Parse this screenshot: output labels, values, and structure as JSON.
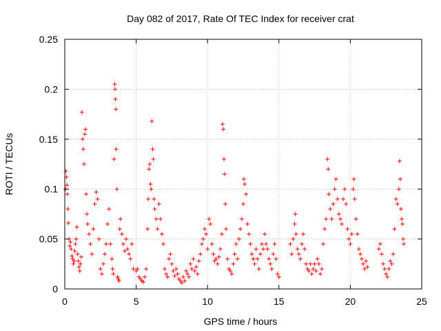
{
  "chart_data": {
    "type": "scatter",
    "title": "Day 082 of 2017, Rate Of TEC Index for receiver crat",
    "xlabel": "GPS time / hours",
    "ylabel": "ROTI / TECUs",
    "xlim": [
      0,
      25
    ],
    "ylim": [
      0,
      0.25
    ],
    "xticks": [
      0,
      5,
      10,
      15,
      20,
      25
    ],
    "yticks": [
      0,
      0.05,
      0.1,
      0.15,
      0.2,
      0.25
    ],
    "xtick_labels": [
      "0",
      "5",
      "10",
      "15",
      "20",
      "25"
    ],
    "ytick_labels": [
      "0",
      "0.05",
      "0.1",
      "0.15",
      "0.2",
      "0.25"
    ],
    "grid": true,
    "marker": "+",
    "color": "#ff0000",
    "series": [
      {
        "points": [
          [
            0.05,
            0.1
          ],
          [
            0.08,
            0.118
          ],
          [
            0.12,
            0.112
          ],
          [
            0.15,
            0.104
          ],
          [
            0.18,
            0.095
          ],
          [
            0.22,
            0.08
          ],
          [
            0.25,
            0.066
          ],
          [
            0.3,
            0.05
          ],
          [
            0.35,
            0.043
          ],
          [
            0.4,
            0.047
          ],
          [
            0.45,
            0.04
          ],
          [
            0.5,
            0.033
          ],
          [
            0.55,
            0.03
          ],
          [
            0.6,
            0.025
          ],
          [
            0.65,
            0.028
          ],
          [
            0.7,
            0.038
          ],
          [
            0.75,
            0.045
          ],
          [
            0.8,
            0.05
          ],
          [
            0.85,
            0.062
          ],
          [
            0.9,
            0.035
          ],
          [
            0.95,
            0.028
          ],
          [
            1.0,
            0.022
          ],
          [
            1.05,
            0.018
          ],
          [
            1.1,
            0.025
          ],
          [
            1.15,
            0.032
          ],
          [
            1.2,
            0.177
          ],
          [
            1.25,
            0.15
          ],
          [
            1.3,
            0.14
          ],
          [
            1.35,
            0.125
          ],
          [
            1.4,
            0.155
          ],
          [
            1.45,
            0.16
          ],
          [
            1.5,
            0.095
          ],
          [
            1.55,
            0.075
          ],
          [
            1.6,
            0.065
          ],
          [
            1.7,
            0.055
          ],
          [
            1.8,
            0.045
          ],
          [
            1.9,
            0.035
          ],
          [
            2.0,
            0.06
          ],
          [
            2.1,
            0.085
          ],
          [
            2.2,
            0.097
          ],
          [
            2.3,
            0.09
          ],
          [
            2.4,
            0.05
          ],
          [
            2.5,
            0.02
          ],
          [
            2.6,
            0.015
          ],
          [
            2.7,
            0.025
          ],
          [
            2.8,
            0.035
          ],
          [
            2.9,
            0.045
          ],
          [
            3.0,
            0.065
          ],
          [
            3.1,
            0.08
          ],
          [
            3.2,
            0.045
          ],
          [
            3.3,
            0.03
          ],
          [
            3.35,
            0.02
          ],
          [
            3.4,
            0.015
          ],
          [
            3.45,
            0.13
          ],
          [
            3.5,
            0.205
          ],
          [
            3.52,
            0.2
          ],
          [
            3.55,
            0.19
          ],
          [
            3.58,
            0.18
          ],
          [
            3.6,
            0.14
          ],
          [
            3.65,
            0.1
          ],
          [
            3.7,
            0.012
          ],
          [
            3.75,
            0.01
          ],
          [
            3.8,
            0.008
          ],
          [
            3.85,
            0.06
          ],
          [
            3.9,
            0.07
          ],
          [
            4.0,
            0.055
          ],
          [
            4.1,
            0.045
          ],
          [
            4.2,
            0.038
          ],
          [
            4.3,
            0.05
          ],
          [
            4.4,
            0.04
          ],
          [
            4.5,
            0.035
          ],
          [
            4.6,
            0.03
          ],
          [
            4.7,
            0.045
          ],
          [
            4.8,
            0.02
          ],
          [
            5.0,
            0.018
          ],
          [
            5.1,
            0.02
          ],
          [
            5.2,
            0.012
          ],
          [
            5.3,
            0.01
          ],
          [
            5.4,
            0.008
          ],
          [
            5.5,
            0.007
          ],
          [
            5.6,
            0.012
          ],
          [
            5.7,
            0.02
          ],
          [
            5.8,
            0.06
          ],
          [
            5.85,
            0.09
          ],
          [
            5.9,
            0.12
          ],
          [
            5.95,
            0.125
          ],
          [
            6.0,
            0.105
          ],
          [
            6.05,
            0.1
          ],
          [
            6.1,
            0.168
          ],
          [
            6.15,
            0.14
          ],
          [
            6.2,
            0.13
          ],
          [
            6.25,
            0.09
          ],
          [
            6.3,
            0.08
          ],
          [
            6.4,
            0.07
          ],
          [
            6.5,
            0.06
          ],
          [
            6.6,
            0.085
          ],
          [
            6.7,
            0.07
          ],
          [
            6.8,
            0.055
          ],
          [
            6.9,
            0.045
          ],
          [
            7.0,
            0.02
          ],
          [
            7.1,
            0.015
          ],
          [
            7.2,
            0.012
          ],
          [
            7.3,
            0.03
          ],
          [
            7.4,
            0.035
          ],
          [
            7.5,
            0.025
          ],
          [
            7.6,
            0.018
          ],
          [
            7.7,
            0.013
          ],
          [
            7.8,
            0.02
          ],
          [
            7.9,
            0.015
          ],
          [
            8.0,
            0.01
          ],
          [
            8.1,
            0.008
          ],
          [
            8.2,
            0.006
          ],
          [
            8.3,
            0.012
          ],
          [
            8.4,
            0.008
          ],
          [
            8.5,
            0.018
          ],
          [
            8.6,
            0.015
          ],
          [
            8.7,
            0.012
          ],
          [
            8.8,
            0.025
          ],
          [
            8.9,
            0.02
          ],
          [
            9.0,
            0.03
          ],
          [
            9.1,
            0.018
          ],
          [
            9.2,
            0.022
          ],
          [
            9.3,
            0.015
          ],
          [
            9.4,
            0.028
          ],
          [
            9.5,
            0.035
          ],
          [
            9.6,
            0.045
          ],
          [
            9.7,
            0.05
          ],
          [
            9.8,
            0.06
          ],
          [
            9.9,
            0.055
          ],
          [
            10.0,
            0.04
          ],
          [
            10.1,
            0.07
          ],
          [
            10.2,
            0.065
          ],
          [
            10.3,
            0.045
          ],
          [
            10.4,
            0.035
          ],
          [
            10.5,
            0.028
          ],
          [
            10.6,
            0.03
          ],
          [
            10.7,
            0.025
          ],
          [
            10.8,
            0.032
          ],
          [
            10.9,
            0.04
          ],
          [
            11.0,
            0.055
          ],
          [
            11.05,
            0.165
          ],
          [
            11.1,
            0.16
          ],
          [
            11.15,
            0.13
          ],
          [
            11.2,
            0.115
          ],
          [
            11.25,
            0.085
          ],
          [
            11.3,
            0.06
          ],
          [
            11.4,
            0.03
          ],
          [
            11.5,
            0.02
          ],
          [
            11.6,
            0.018
          ],
          [
            11.7,
            0.015
          ],
          [
            11.8,
            0.025
          ],
          [
            11.9,
            0.035
          ],
          [
            12.0,
            0.045
          ],
          [
            12.1,
            0.03
          ],
          [
            12.2,
            0.05
          ],
          [
            12.3,
            0.06
          ],
          [
            12.4,
            0.07
          ],
          [
            12.5,
            0.085
          ],
          [
            12.55,
            0.11
          ],
          [
            12.6,
            0.105
          ],
          [
            12.7,
            0.095
          ],
          [
            12.8,
            0.065
          ],
          [
            12.9,
            0.055
          ],
          [
            13.0,
            0.045
          ],
          [
            13.1,
            0.035
          ],
          [
            13.2,
            0.03
          ],
          [
            13.3,
            0.025
          ],
          [
            13.4,
            0.04
          ],
          [
            13.5,
            0.03
          ],
          [
            13.6,
            0.02
          ],
          [
            13.7,
            0.035
          ],
          [
            13.8,
            0.045
          ],
          [
            13.9,
            0.04
          ],
          [
            14.0,
            0.055
          ],
          [
            14.1,
            0.045
          ],
          [
            14.2,
            0.04
          ],
          [
            14.3,
            0.03
          ],
          [
            14.4,
            0.025
          ],
          [
            14.5,
            0.02
          ],
          [
            14.6,
            0.035
          ],
          [
            14.7,
            0.045
          ],
          [
            14.8,
            0.03
          ],
          [
            14.9,
            0.015
          ],
          [
            15.0,
            0.012
          ],
          [
            15.8,
            0.045
          ],
          [
            15.9,
            0.035
          ],
          [
            16.0,
            0.05
          ],
          [
            16.1,
            0.065
          ],
          [
            16.15,
            0.075
          ],
          [
            16.2,
            0.055
          ],
          [
            16.3,
            0.04
          ],
          [
            16.4,
            0.035
          ],
          [
            16.5,
            0.03
          ],
          [
            16.6,
            0.045
          ],
          [
            16.7,
            0.055
          ],
          [
            16.8,
            0.04
          ],
          [
            16.9,
            0.025
          ],
          [
            17.0,
            0.02
          ],
          [
            17.1,
            0.018
          ],
          [
            17.2,
            0.025
          ],
          [
            17.3,
            0.015
          ],
          [
            17.4,
            0.02
          ],
          [
            17.5,
            0.025
          ],
          [
            17.6,
            0.018
          ],
          [
            17.7,
            0.03
          ],
          [
            17.8,
            0.025
          ],
          [
            17.9,
            0.015
          ],
          [
            18.0,
            0.02
          ],
          [
            18.1,
            0.045
          ],
          [
            18.2,
            0.06
          ],
          [
            18.3,
            0.07
          ],
          [
            18.4,
            0.13
          ],
          [
            18.45,
            0.12
          ],
          [
            18.5,
            0.095
          ],
          [
            18.6,
            0.08
          ],
          [
            18.7,
            0.07
          ],
          [
            18.8,
            0.085
          ],
          [
            18.9,
            0.1
          ],
          [
            19.0,
            0.11
          ],
          [
            19.1,
            0.09
          ],
          [
            19.2,
            0.075
          ],
          [
            19.3,
            0.07
          ],
          [
            19.4,
            0.065
          ],
          [
            19.5,
            0.09
          ],
          [
            19.6,
            0.1
          ],
          [
            19.7,
            0.085
          ],
          [
            19.8,
            0.06
          ],
          [
            19.9,
            0.05
          ],
          [
            20.0,
            0.045
          ],
          [
            20.1,
            0.055
          ],
          [
            20.2,
            0.1
          ],
          [
            20.25,
            0.11
          ],
          [
            20.3,
            0.09
          ],
          [
            20.4,
            0.07
          ],
          [
            20.5,
            0.055
          ],
          [
            20.6,
            0.04
          ],
          [
            20.7,
            0.035
          ],
          [
            20.8,
            0.03
          ],
          [
            20.9,
            0.025
          ],
          [
            21.0,
            0.02
          ],
          [
            21.1,
            0.028
          ],
          [
            21.2,
            0.022
          ],
          [
            22.0,
            0.04
          ],
          [
            22.1,
            0.045
          ],
          [
            22.2,
            0.035
          ],
          [
            22.3,
            0.025
          ],
          [
            22.4,
            0.02
          ],
          [
            22.5,
            0.015
          ],
          [
            22.6,
            0.012
          ],
          [
            22.7,
            0.02
          ],
          [
            22.8,
            0.028
          ],
          [
            22.9,
            0.025
          ],
          [
            23.0,
            0.035
          ],
          [
            23.1,
            0.06
          ],
          [
            23.2,
            0.09
          ],
          [
            23.3,
            0.085
          ],
          [
            23.4,
            0.1
          ],
          [
            23.45,
            0.128
          ],
          [
            23.5,
            0.11
          ],
          [
            23.55,
            0.08
          ],
          [
            23.6,
            0.07
          ],
          [
            23.65,
            0.065
          ],
          [
            23.7,
            0.05
          ],
          [
            23.75,
            0.045
          ]
        ]
      }
    ]
  }
}
